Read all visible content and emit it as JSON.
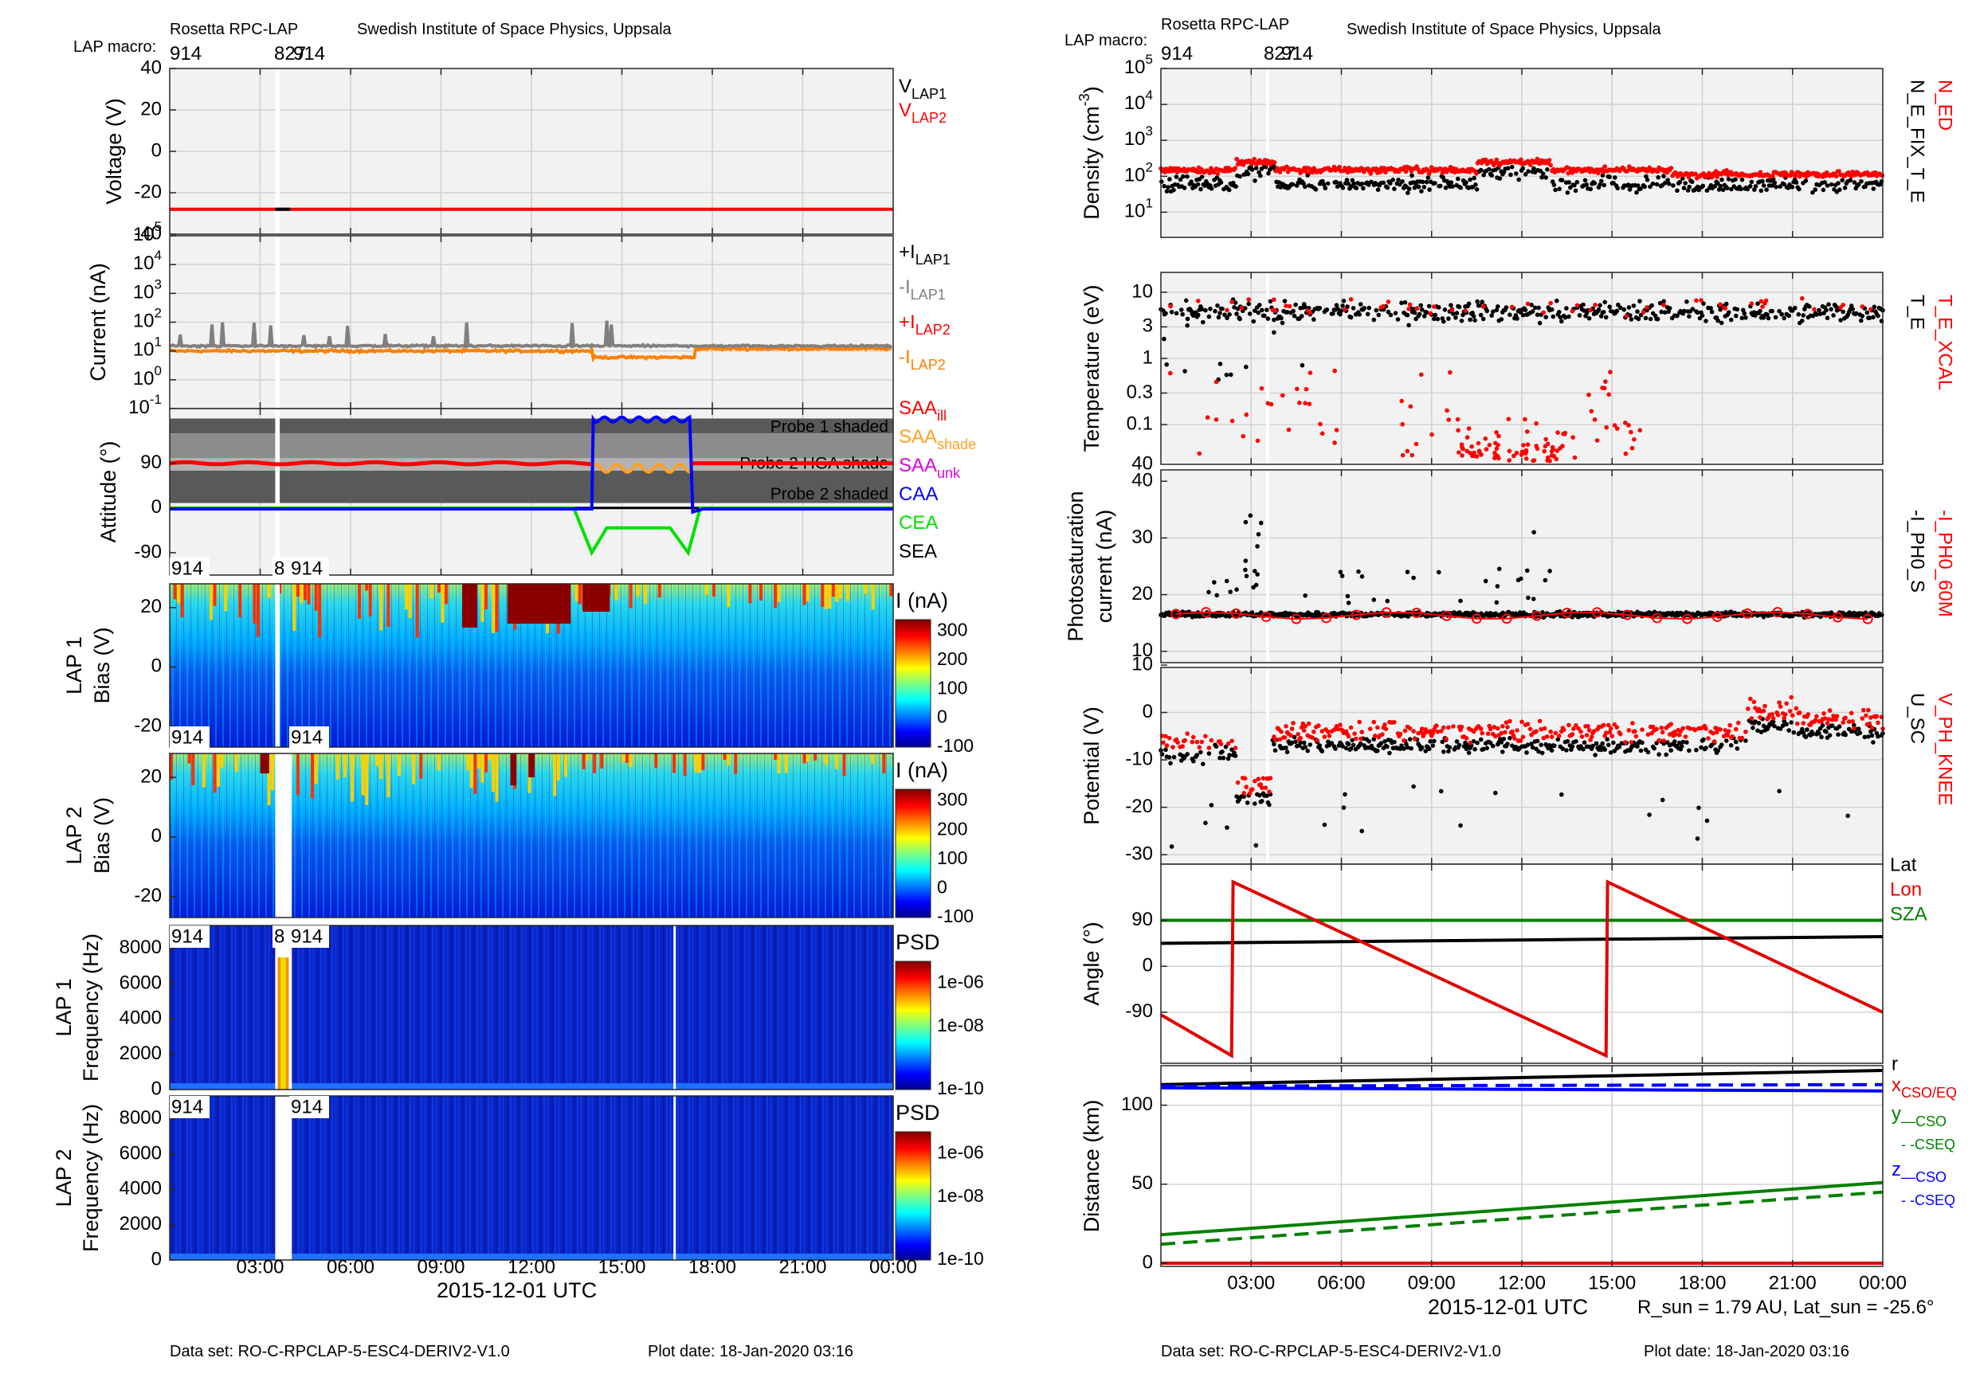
{
  "left": {
    "instrument": "Rosetta RPC-LAP",
    "institute": "Swedish Institute of Space Physics, Uppsala",
    "macro_label": "LAP macro:",
    "macro_markers": [
      "914",
      "827",
      "914"
    ],
    "dataset": "Data set: RO-C-RPCLAP-5-ESC4-DERIV2-V1.0",
    "plot_date": "Plot date: 18-Jan-2020 03:16",
    "xlabel": "2015-12-01 UTC",
    "xticks": [
      "03:00",
      "06:00",
      "09:00",
      "12:00",
      "15:00",
      "18:00",
      "21:00",
      "00:00"
    ]
  },
  "right": {
    "instrument": "Rosetta RPC-LAP",
    "institute": "Swedish Institute of Space Physics, Uppsala",
    "macro_label": "LAP macro:",
    "macro_markers": [
      "914",
      "827",
      "914"
    ],
    "dataset": "Data set: RO-C-RPCLAP-5-ESC4-DERIV2-V1.0",
    "plot_date": "Plot date: 18-Jan-2020 03:16",
    "xlabel": "2015-12-01 UTC",
    "xticks": [
      "03:00",
      "06:00",
      "09:00",
      "12:00",
      "15:00",
      "18:00",
      "21:00",
      "00:00"
    ],
    "rsun_note": "R_sun = 1.79 AU, Lat_sun = -25.6°"
  },
  "chart_data": [
    {
      "panel": "voltage",
      "type": "line",
      "ylabel": "Voltage (V)",
      "ylim": [
        -40,
        40
      ],
      "yticks": [
        "40",
        "20",
        "0",
        "-20",
        "-40"
      ],
      "legend": [
        "V_LAP1",
        "V_LAP2"
      ],
      "series": [
        {
          "name": "V_LAP2",
          "x_hours": [
            0,
            24
          ],
          "values": [
            -28,
            -28
          ]
        }
      ]
    },
    {
      "panel": "current",
      "type": "line",
      "ylabel": "Current (nA)",
      "scale": "log",
      "yticks": [
        "10^5",
        "10^4",
        "10^3",
        "10^2",
        "10^1",
        "10^0",
        "10^-1"
      ],
      "legend": [
        "+I_LAP1",
        "-I_LAP1",
        "+I_LAP2",
        "-I_LAP2"
      ],
      "series": [
        {
          "name": "-I_LAP1",
          "x_hours": [
            0,
            3,
            6,
            9,
            12,
            14,
            17,
            24
          ],
          "values": [
            15,
            16,
            15,
            15,
            14,
            14,
            15,
            15
          ]
        },
        {
          "name": "-I_LAP2",
          "x_hours": [
            0,
            3,
            6,
            9,
            12,
            14,
            14.1,
            17.4,
            17.5,
            24
          ],
          "values": [
            10,
            11,
            10,
            10,
            10,
            10,
            6,
            6,
            12,
            12
          ]
        }
      ]
    },
    {
      "panel": "attitude",
      "type": "line",
      "ylabel": "Attitude (°)",
      "yticks": [
        "90",
        "0",
        "-90"
      ],
      "bands": [
        "Probe 1 shaded",
        "Probe 2 HGA shade",
        "Probe 2 shaded"
      ],
      "legend": [
        "SAA_ill",
        "SAA_shade",
        "SAA_unk",
        "CAA",
        "CEA",
        "SEA"
      ],
      "series": [
        {
          "name": "SAA_ill",
          "x_hours": [
            0,
            24
          ],
          "values": [
            90,
            90
          ]
        },
        {
          "name": "CAA",
          "x_hours": [
            0,
            14,
            14.1,
            17.3,
            17.4,
            24
          ],
          "values": [
            0,
            0,
            180,
            180,
            0,
            0
          ]
        },
        {
          "name": "CEA",
          "x_hours": [
            0,
            13.4,
            14,
            14.5,
            16.6,
            17.2,
            17.6,
            24
          ],
          "values": [
            0,
            0,
            -90,
            -40,
            -40,
            -90,
            0,
            0
          ]
        }
      ]
    },
    {
      "panel": "lap1_sweeps",
      "type": "heatmap",
      "ylabel": "LAP 1 Bias (V)",
      "yticks": [
        "20",
        "0",
        "-20"
      ],
      "colorbar_label": "I (nA)",
      "colorbar_ticks": [
        "300",
        "200",
        "100",
        "0",
        "-100"
      ]
    },
    {
      "panel": "lap2_sweeps",
      "type": "heatmap",
      "ylabel": "LAP 2 Bias (V)",
      "yticks": [
        "20",
        "0",
        "-20"
      ],
      "colorbar_label": "I (nA)",
      "colorbar_ticks": [
        "300",
        "200",
        "100",
        "0",
        "-100"
      ]
    },
    {
      "panel": "lap1_psd",
      "type": "heatmap",
      "ylabel": "LAP 1 Frequency (Hz)",
      "yticks": [
        "8000",
        "6000",
        "4000",
        "2000",
        "0"
      ],
      "colorbar_label": "PSD",
      "colorbar_ticks": [
        "1e-06",
        "1e-08",
        "1e-10"
      ]
    },
    {
      "panel": "lap2_psd",
      "type": "heatmap",
      "ylabel": "LAP 2 Frequency (Hz)",
      "yticks": [
        "8000",
        "6000",
        "4000",
        "2000",
        "0"
      ],
      "colorbar_label": "PSD",
      "colorbar_ticks": [
        "1e-06",
        "1e-08",
        "1e-10"
      ]
    },
    {
      "panel": "density",
      "type": "scatter",
      "ylabel": "Density (cm^-3)",
      "scale": "log",
      "yticks": [
        "10^5",
        "10^4",
        "10^3",
        "10^2",
        "10^1"
      ],
      "legend": [
        "N_ED",
        "N_E_FIX_T_E"
      ],
      "series": [
        {
          "name": "N_ED",
          "level": 150
        },
        {
          "name": "N_E_FIX_T_E",
          "level": 60
        }
      ]
    },
    {
      "panel": "temperature",
      "type": "scatter",
      "ylabel": "Temperature (eV)",
      "scale": "log",
      "yticks": [
        "10",
        "3",
        "1",
        "0.3",
        "0.1"
      ],
      "legend": [
        "T_E_XCAL",
        "T_E"
      ]
    },
    {
      "panel": "photosaturation",
      "type": "scatter",
      "ylabel": "Photosaturation current (nA)",
      "ylim": [
        10,
        40
      ],
      "yticks": [
        "40",
        "30",
        "20",
        "10"
      ],
      "legend": [
        "-I_PH0_60M",
        "-I_PH0_S"
      ],
      "series": [
        {
          "name": "-I_PH0_S",
          "level": 16.5
        }
      ]
    },
    {
      "panel": "potential",
      "type": "scatter",
      "ylabel": "Potential (V)",
      "ylim": [
        -30,
        10
      ],
      "yticks": [
        "10",
        "0",
        "-10",
        "-20",
        "-30"
      ],
      "legend": [
        "V_PH_KNEE",
        "U_SC"
      ]
    },
    {
      "panel": "angle",
      "type": "line",
      "ylabel": "Angle (°)",
      "yticks": [
        "90",
        "0",
        "-90"
      ],
      "legend": [
        "Lat",
        "Lon",
        "SZA"
      ],
      "series": [
        {
          "name": "Lat",
          "x_hours": [
            0,
            24
          ],
          "values": [
            45,
            58
          ]
        },
        {
          "name": "Lon",
          "x_hours": [
            0,
            2.35,
            2.4,
            14.8,
            14.85,
            24
          ],
          "values": [
            -95,
            -175,
            165,
            -175,
            165,
            -90
          ]
        },
        {
          "name": "SZA",
          "x_hours": [
            0,
            24
          ],
          "values": [
            90,
            90
          ]
        }
      ]
    },
    {
      "panel": "distance",
      "type": "line",
      "ylabel": "Distance (km)",
      "yticks": [
        "100",
        "50",
        "0"
      ],
      "legend": [
        "r",
        "x_CSO/EQ",
        "y_—CSO",
        "- -CSEQ",
        "z_—CSO",
        "- -CSEQ"
      ],
      "series": [
        {
          "name": "r",
          "x_hours": [
            0,
            24
          ],
          "values": [
            113,
            122
          ]
        },
        {
          "name": "x_CSO/EQ",
          "x_hours": [
            0,
            24
          ],
          "values": [
            0,
            0
          ]
        },
        {
          "name": "y_—CSO",
          "x_hours": [
            0,
            24
          ],
          "values": [
            18,
            51
          ]
        },
        {
          "name": "- -CSEQ",
          "x_hours": [
            0,
            24
          ],
          "values": [
            12,
            45
          ]
        },
        {
          "name": "z_—CSO",
          "x_hours": [
            0,
            24
          ],
          "values": [
            111,
            109
          ]
        },
        {
          "name": "- -CSEQ",
          "x_hours": [
            0,
            24
          ],
          "values": [
            112,
            113
          ]
        }
      ]
    }
  ]
}
